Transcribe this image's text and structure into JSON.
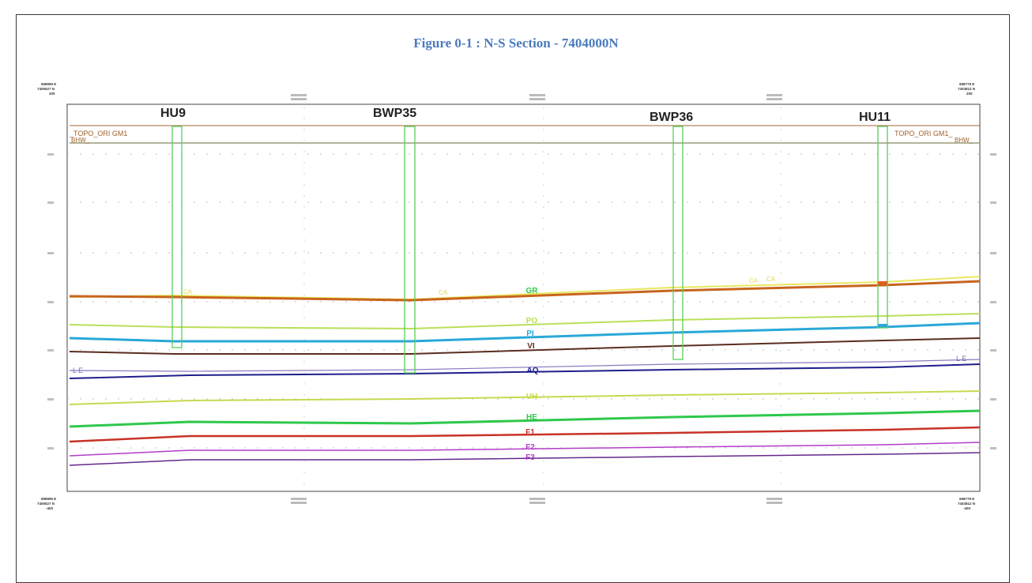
{
  "caption": "Figure 0-1 : N-S Section - 7404000N",
  "corners": {
    "top_left": [
      "698999 E",
      "7405527 N",
      "200"
    ],
    "top_right": [
      "698779 E",
      "7403812 N",
      "200"
    ],
    "bottom_left": [
      "698999 E",
      "7405527 N",
      "-400"
    ],
    "bottom_right": [
      "698779 E",
      "7403812 N",
      "-400"
    ]
  },
  "reference_lines": {
    "topo_left": "_TOPO_ORI GM1",
    "topo_right": "TOPO_ORI GM1_",
    "bhw_left": "BHW_",
    "bhw_right": "BHW_",
    "le_left": "L E",
    "le_right": "L E"
  },
  "drillholes": [
    {
      "name": "HU9"
    },
    {
      "name": "BWP35"
    },
    {
      "name": "BWP36"
    },
    {
      "name": "HU11"
    }
  ],
  "horizons": [
    {
      "label": "GR",
      "color": "#c8641e"
    },
    {
      "label": "PO",
      "color": "#b8e05a"
    },
    {
      "label": "PI",
      "color": "#2aa8d8"
    },
    {
      "label": "VI",
      "color": "#5a2d1e"
    },
    {
      "label": "AQ",
      "color": "#1e1e8c"
    },
    {
      "label": "UH",
      "color": "#c8d850"
    },
    {
      "label": "HE",
      "color": "#2ec84a"
    },
    {
      "label": "F1",
      "color": "#c83228"
    },
    {
      "label": "F2",
      "color": "#b43cc8"
    },
    {
      "label": "F3",
      "color": "#64288c"
    }
  ],
  "marker_labels": [
    "CA",
    "CA",
    "CA",
    "CA"
  ]
}
